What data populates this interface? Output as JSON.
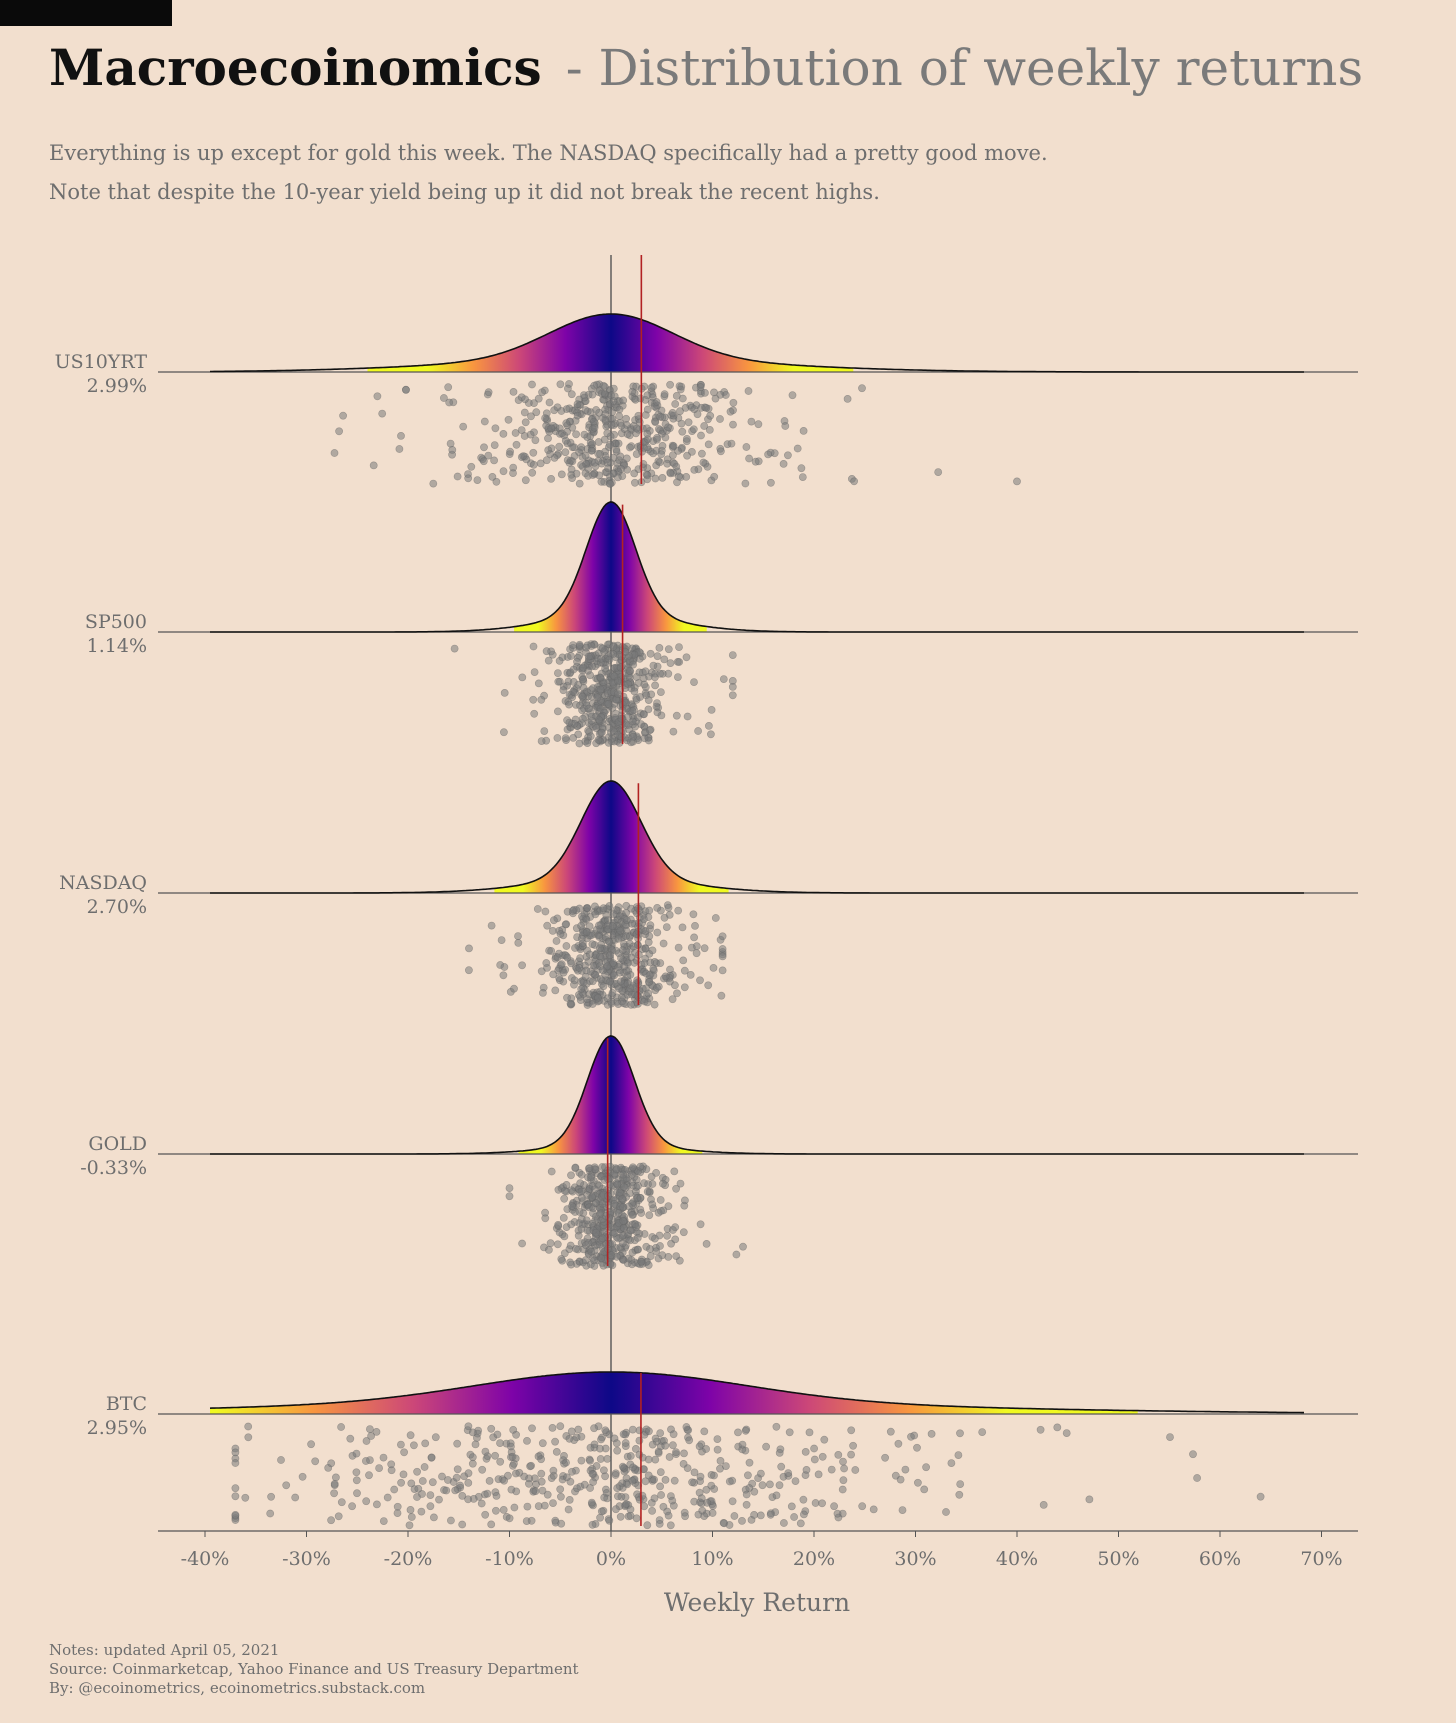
{
  "header": {
    "title": "Macroecoinomics",
    "title_suffix": "- Distribution of weekly returns",
    "subtitle_line1": "Everything is up except for gold this week. The NASDAQ specifically had a pretty good move.",
    "subtitle_line2": "Note that despite the 10-year yield being up it did not break the recent highs."
  },
  "footer": {
    "notes": "Notes: updated April 05, 2021",
    "source": "Source: Coinmarketcap, Yahoo Finance and US Treasury Department",
    "by": "By: @ecoinometrics, ecoinometrics.substack.com"
  },
  "chart_data": {
    "type": "ridgeline",
    "xlabel": "Weekly Return",
    "ylabel": "",
    "xlim": [
      -45,
      73
    ],
    "x_ticks": [
      -40,
      -30,
      -20,
      -10,
      0,
      10,
      20,
      30,
      40,
      50,
      60,
      70
    ],
    "x_tick_labels": [
      "-40%",
      "-30%",
      "-20%",
      "-10%",
      "0%",
      "10%",
      "20%",
      "30%",
      "40%",
      "50%",
      "60%",
      "70%"
    ],
    "colormap": [
      "#0d0887",
      "#7e03a8",
      "#cc4778",
      "#f89540",
      "#f0f921"
    ],
    "reference_line_color": "#b22222",
    "zero_line_color": "#555555",
    "series": [
      {
        "name": "US10YRT",
        "latest_label": "2.99%",
        "latest_return": 2.99,
        "sd": 6.0,
        "kurt": 0.28,
        "range": [
          -35,
          40
        ]
      },
      {
        "name": "SP500",
        "latest_label": "1.14%",
        "latest_return": 1.14,
        "sd": 2.4,
        "kurt": 0.15,
        "range": [
          -18,
          12
        ]
      },
      {
        "name": "NASDAQ",
        "latest_label": "2.70%",
        "latest_return": 2.7,
        "sd": 2.9,
        "kurt": 0.15,
        "range": [
          -14,
          11
        ]
      },
      {
        "name": "GOLD",
        "latest_label": "-0.33%",
        "latest_return": -0.33,
        "sd": 2.3,
        "kurt": 0.08,
        "range": [
          -10,
          13
        ]
      },
      {
        "name": "BTC",
        "latest_label": "2.95%",
        "latest_return": 2.95,
        "sd": 13.0,
        "kurt": 0.35,
        "range": [
          -37,
          66
        ]
      }
    ]
  }
}
